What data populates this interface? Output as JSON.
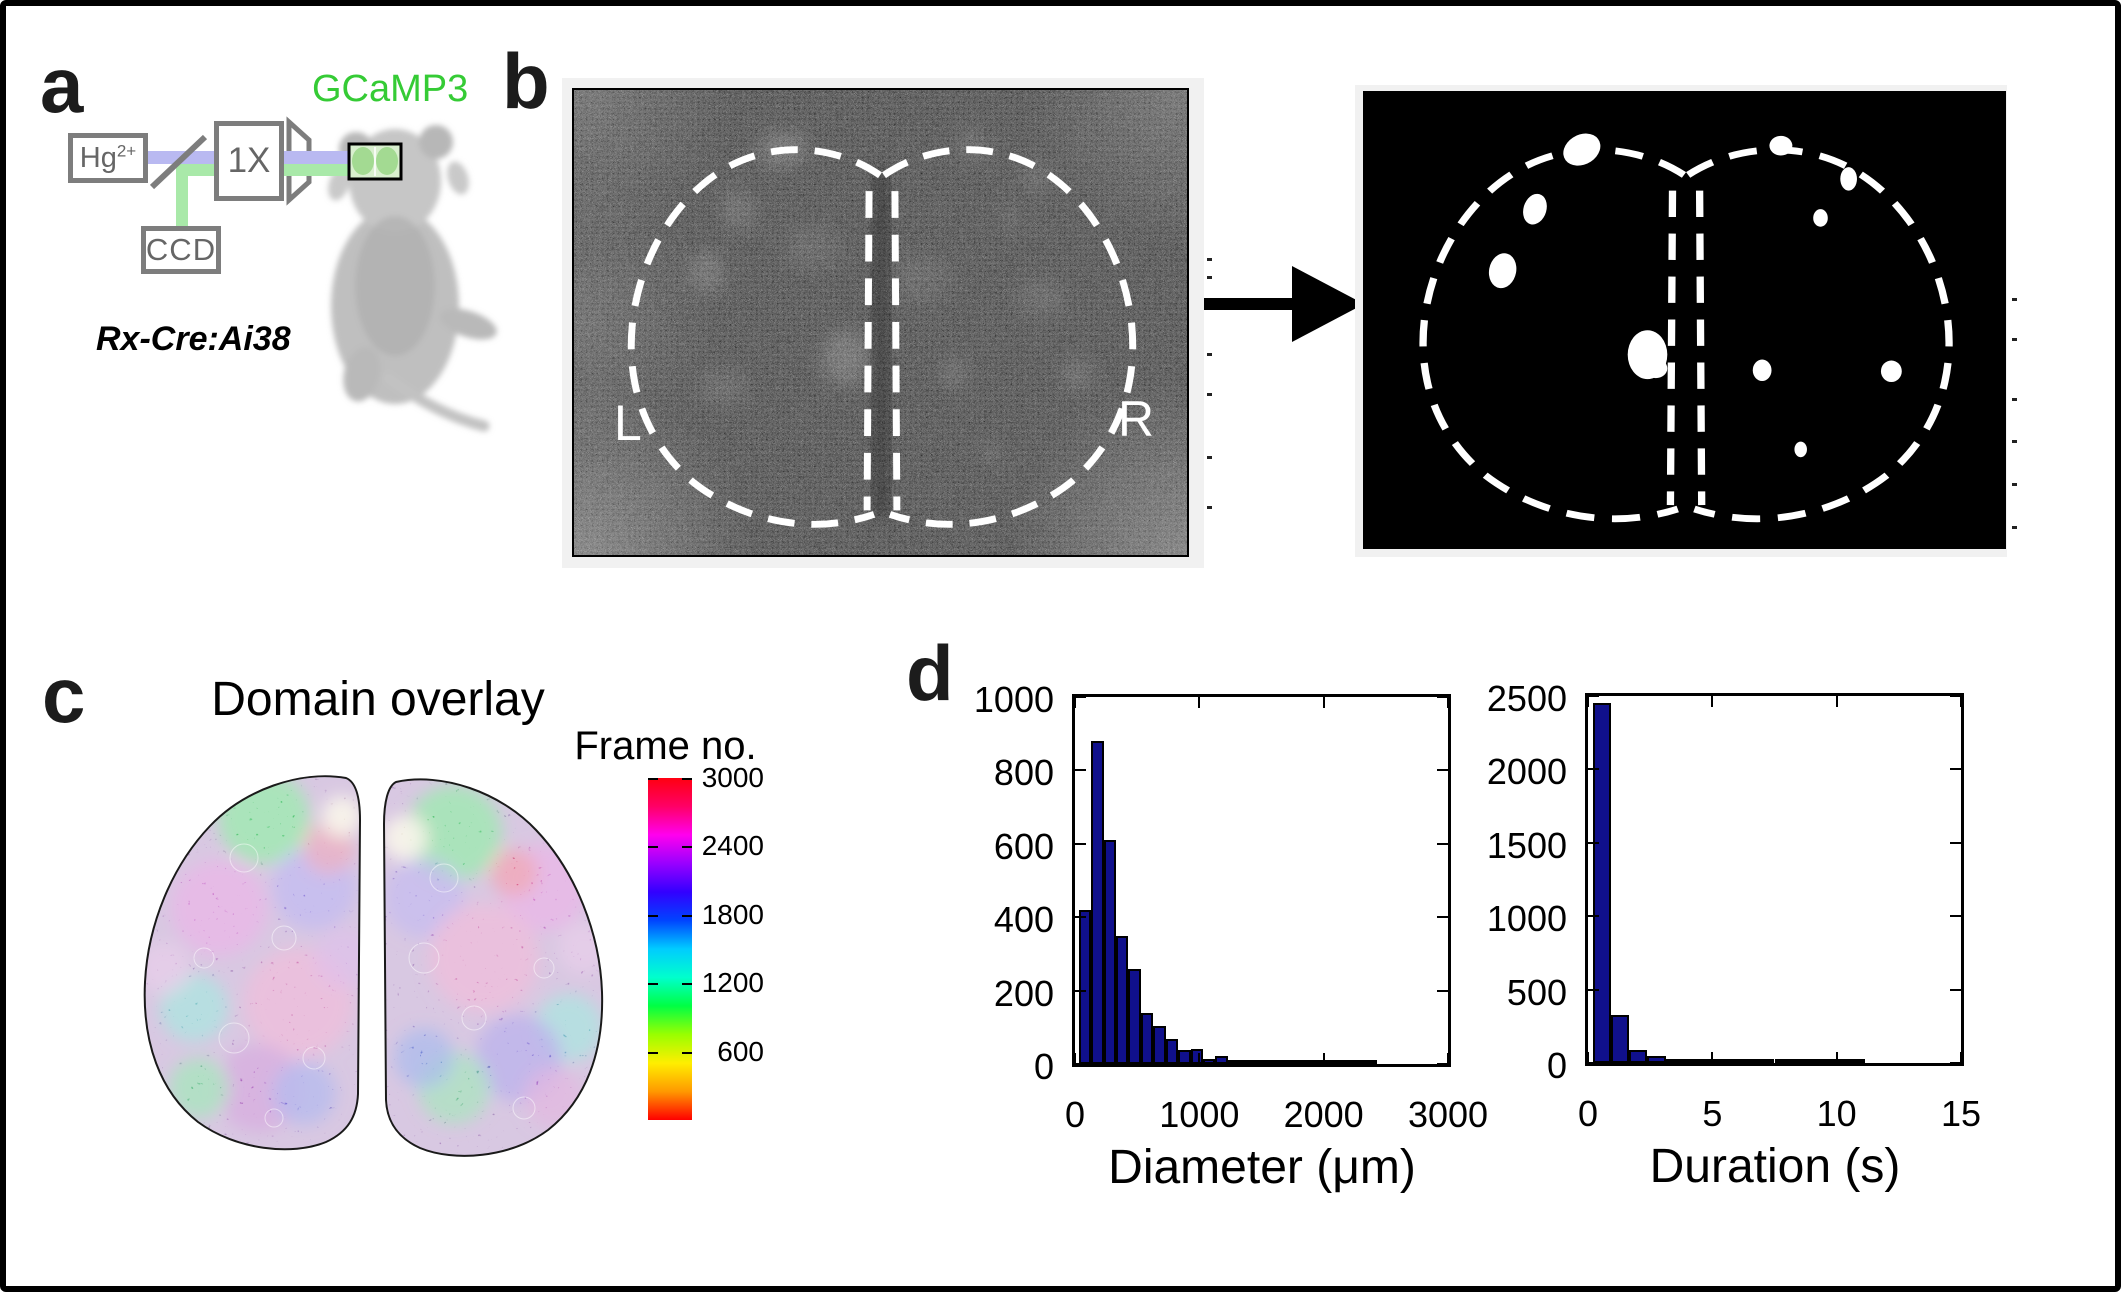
{
  "panel_labels": {
    "a": "a",
    "b": "b",
    "c": "c",
    "d": "d"
  },
  "panel_a": {
    "light_source_base": "Hg",
    "light_source_sup": "2+",
    "objective_label": "1X",
    "camera_label": "CCD",
    "reporter_label": "GCaMP3",
    "mouse_line_label": "Rx-Cre:Ai38",
    "colors": {
      "excitation_beam": "#b9b9f1",
      "emission_beam": "#a9e9a9",
      "reporter_green": "#35cb35",
      "schematic_gray": "#7d7d7d"
    }
  },
  "panel_b": {
    "left_hemisphere_label": "L",
    "right_hemisphere_label": "R"
  },
  "panel_c": {
    "title": "Domain overlay",
    "colorbar_title": "Frame no.",
    "colorbar_ticks": [
      3000,
      2400,
      1800,
      1200,
      600
    ],
    "colorbar_range": [
      0,
      3000
    ],
    "colormap_stops": [
      "#ff0000",
      "#ff9900",
      "#ffee00",
      "#99ff00",
      "#00ff44",
      "#00ffcc",
      "#00ccff",
      "#0044ff",
      "#3300ff",
      "#9900ff",
      "#ff00ee",
      "#ff0066",
      "#ff0011"
    ]
  },
  "chart_data": [
    {
      "type": "bar",
      "xlabel": "Diameter (μm)",
      "ylabel": "",
      "xlim": [
        0,
        3000
      ],
      "ylim": [
        0,
        1000
      ],
      "xticks": [
        0,
        1000,
        2000,
        3000
      ],
      "yticks": [
        0,
        200,
        400,
        600,
        800,
        1000
      ],
      "bin_start": 30,
      "bin_width": 100,
      "bar_color": "#10108c",
      "values": [
        420,
        880,
        610,
        350,
        260,
        140,
        103,
        68,
        38,
        40,
        13,
        22,
        9,
        6,
        5,
        4,
        3,
        3,
        3,
        8,
        2,
        1,
        1,
        3
      ]
    },
    {
      "type": "bar",
      "xlabel": "Duration (s)",
      "ylabel": "",
      "xlim": [
        0,
        15
      ],
      "ylim": [
        0,
        2500
      ],
      "xticks": [
        0,
        5,
        10,
        15
      ],
      "yticks": [
        0,
        500,
        1000,
        1500,
        2000,
        2500
      ],
      "bin_start": 0.2,
      "bin_width": 0.73,
      "bar_color": "#10108c",
      "values": [
        2450,
        330,
        90,
        45,
        18,
        12,
        12,
        4,
        3,
        3,
        2,
        2,
        1,
        5,
        1,
        0,
        0,
        0,
        0,
        0
      ]
    }
  ]
}
